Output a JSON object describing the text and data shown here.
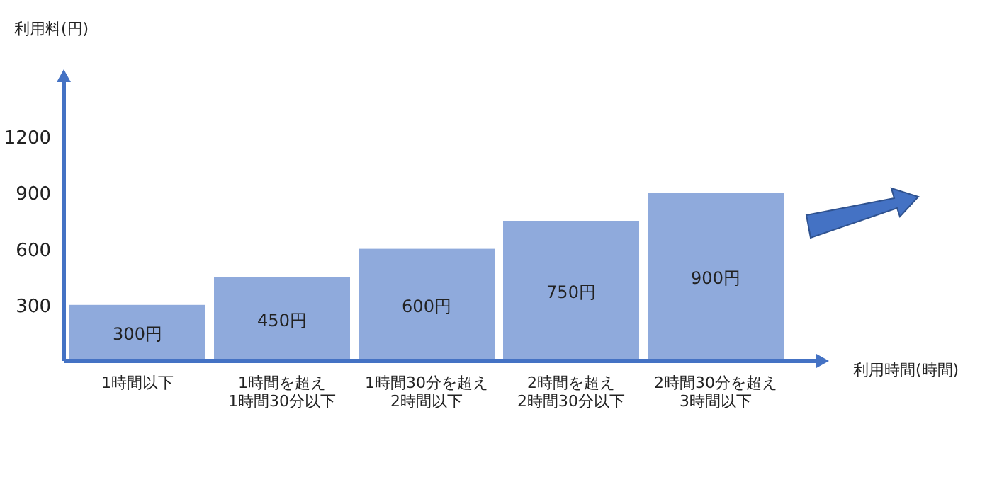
{
  "chart_data": {
    "type": "bar",
    "ylabel": "利用料(円)",
    "xlabel": "利用時間(時間)",
    "categories": [
      "1時間以下",
      "1時間を超え\n1時間30分以下",
      "1時間30分を超え\n2時間以下",
      "2時間を超え\n2時間30分以下",
      "2時間30分を超え\n3時間以下"
    ],
    "values": [
      300,
      450,
      600,
      750,
      900
    ],
    "value_labels": [
      "300円",
      "450円",
      "600円",
      "750円",
      "900円"
    ],
    "color": "#8faadc",
    "ylim": [
      0,
      1500
    ],
    "yticks": [
      300,
      600,
      900,
      1200
    ],
    "grid": false
  }
}
